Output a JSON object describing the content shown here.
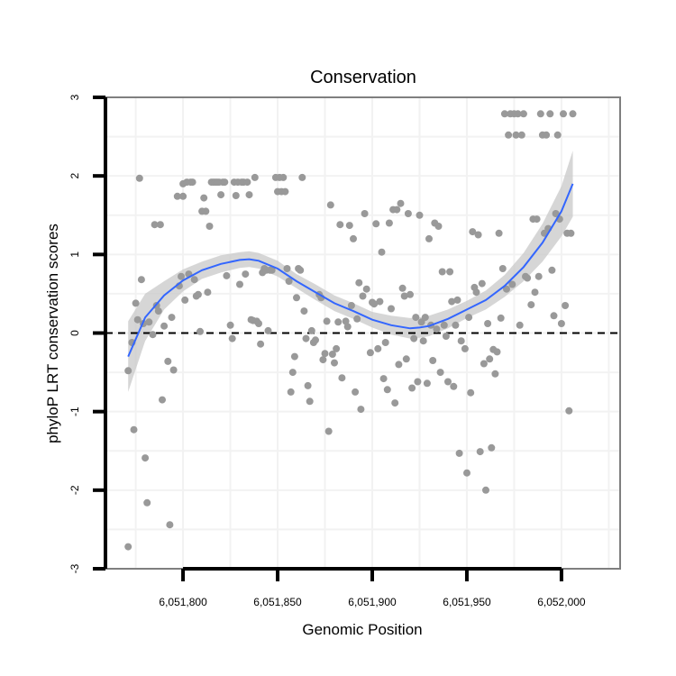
{
  "chart_data": {
    "type": "scatter",
    "title": "Conservation",
    "xlabel": "Genomic Position",
    "ylabel": "phyloP LRT conservation scores",
    "xlim": [
      6051759,
      6052031
    ],
    "ylim": [
      -3,
      3
    ],
    "x_ticks": [
      6051800,
      6051850,
      6051900,
      6051950,
      6052000
    ],
    "x_tick_labels": [
      "6,051,800",
      "6,051,850",
      "6,051,900",
      "6,051,950",
      "6,052,000"
    ],
    "y_ticks": [
      -3,
      -2,
      -1,
      0,
      1,
      2,
      3
    ],
    "y_tick_labels": [
      "-3",
      "-2",
      "-1",
      "0",
      "1",
      "2",
      "3"
    ],
    "reference_line": {
      "y": 0,
      "style": "dashed",
      "color": "#000000"
    },
    "colors": {
      "points": "#999999",
      "smooth": "#3366ff",
      "band": "#c8c8c8",
      "panel_border": "#7f7f7f",
      "grid": "#f2f2f2"
    },
    "points": [
      [
        6051771,
        -2.72
      ],
      [
        6051771,
        -0.48
      ],
      [
        6051773,
        -0.12
      ],
      [
        6051774,
        -1.23
      ],
      [
        6051775,
        0.38
      ],
      [
        6051776,
        0.17
      ],
      [
        6051777,
        1.97
      ],
      [
        6051778,
        0.68
      ],
      [
        6051779,
        0.12
      ],
      [
        6051780,
        -1.59
      ],
      [
        6051781,
        -2.16
      ],
      [
        6051782,
        0.14
      ],
      [
        6051784,
        -0.02
      ],
      [
        6051785,
        1.38
      ],
      [
        6051786,
        0.35
      ],
      [
        6051787,
        0.28
      ],
      [
        6051788,
        1.38
      ],
      [
        6051789,
        -0.85
      ],
      [
        6051790,
        0.09
      ],
      [
        6051792,
        -0.36
      ],
      [
        6051793,
        -2.44
      ],
      [
        6051794,
        0.2
      ],
      [
        6051795,
        -0.47
      ],
      [
        6051797,
        1.74
      ],
      [
        6051798,
        0.6
      ],
      [
        6051799,
        0.72
      ],
      [
        6051800,
        1.74
      ],
      [
        6051800,
        1.9
      ],
      [
        6051801,
        0.42
      ],
      [
        6051802,
        1.92
      ],
      [
        6051803,
        0.75
      ],
      [
        6051804,
        1.92
      ],
      [
        6051805,
        1.92
      ],
      [
        6051806,
        0.68
      ],
      [
        6051807,
        0.47
      ],
      [
        6051808,
        0.49
      ],
      [
        6051809,
        0.02
      ],
      [
        6051810,
        1.55
      ],
      [
        6051811,
        1.72
      ],
      [
        6051812,
        1.55
      ],
      [
        6051813,
        0.52
      ],
      [
        6051814,
        1.36
      ],
      [
        6051815,
        1.92
      ],
      [
        6051816,
        1.92
      ],
      [
        6051817,
        1.92
      ],
      [
        6051818,
        1.92
      ],
      [
        6051819,
        1.92
      ],
      [
        6051820,
        1.76
      ],
      [
        6051821,
        1.92
      ],
      [
        6051822,
        1.92
      ],
      [
        6051823,
        0.73
      ],
      [
        6051825,
        0.1
      ],
      [
        6051826,
        -0.07
      ],
      [
        6051827,
        1.92
      ],
      [
        6051828,
        1.75
      ],
      [
        6051829,
        1.92
      ],
      [
        6051830,
        0.62
      ],
      [
        6051831,
        1.92
      ],
      [
        6051832,
        1.92
      ],
      [
        6051833,
        0.75
      ],
      [
        6051834,
        1.92
      ],
      [
        6051835,
        1.76
      ],
      [
        6051836,
        0.17
      ],
      [
        6051837,
        0.16
      ],
      [
        6051838,
        1.98
      ],
      [
        6051839,
        0.15
      ],
      [
        6051840,
        0.12
      ],
      [
        6051841,
        -0.14
      ],
      [
        6051842,
        0.77
      ],
      [
        6051843,
        0.82
      ],
      [
        6051844,
        0.8
      ],
      [
        6051845,
        0.03
      ],
      [
        6051846,
        0.8
      ],
      [
        6051847,
        0.8
      ],
      [
        6051849,
        1.98
      ],
      [
        6051850,
        1.8
      ],
      [
        6051851,
        1.98
      ],
      [
        6051852,
        1.8
      ],
      [
        6051853,
        1.98
      ],
      [
        6051854,
        1.8
      ],
      [
        6051855,
        0.82
      ],
      [
        6051856,
        0.66
      ],
      [
        6051857,
        -0.75
      ],
      [
        6051858,
        -0.5
      ],
      [
        6051859,
        -0.3
      ],
      [
        6051860,
        0.45
      ],
      [
        6051861,
        0.82
      ],
      [
        6051862,
        0.8
      ],
      [
        6051863,
        1.98
      ],
      [
        6051864,
        0.28
      ],
      [
        6051865,
        -0.07
      ],
      [
        6051866,
        -0.67
      ],
      [
        6051867,
        -0.87
      ],
      [
        6051868,
        0.03
      ],
      [
        6051869,
        -0.12
      ],
      [
        6051870,
        -0.09
      ],
      [
        6051872,
        0.49
      ],
      [
        6051873,
        0.45
      ],
      [
        6051874,
        -0.34
      ],
      [
        6051875,
        -0.26
      ],
      [
        6051876,
        0.15
      ],
      [
        6051877,
        -1.25
      ],
      [
        6051878,
        1.63
      ],
      [
        6051879,
        -0.27
      ],
      [
        6051880,
        -0.38
      ],
      [
        6051881,
        -0.2
      ],
      [
        6051882,
        0.14
      ],
      [
        6051883,
        1.38
      ],
      [
        6051884,
        -0.57
      ],
      [
        6051886,
        0.15
      ],
      [
        6051887,
        0.08
      ],
      [
        6051888,
        1.37
      ],
      [
        6051889,
        0.35
      ],
      [
        6051890,
        1.2
      ],
      [
        6051891,
        -0.75
      ],
      [
        6051892,
        0.18
      ],
      [
        6051893,
        0.64
      ],
      [
        6051894,
        -0.97
      ],
      [
        6051895,
        0.47
      ],
      [
        6051896,
        1.52
      ],
      [
        6051897,
        0.56
      ],
      [
        6051899,
        -0.25
      ],
      [
        6051900,
        0.39
      ],
      [
        6051901,
        0.37
      ],
      [
        6051902,
        1.39
      ],
      [
        6051903,
        -0.2
      ],
      [
        6051904,
        0.4
      ],
      [
        6051905,
        1.03
      ],
      [
        6051906,
        -0.58
      ],
      [
        6051907,
        -0.12
      ],
      [
        6051908,
        -0.72
      ],
      [
        6051909,
        1.4
      ],
      [
        6051910,
        0.31
      ],
      [
        6051911,
        1.57
      ],
      [
        6051912,
        -0.89
      ],
      [
        6051913,
        1.57
      ],
      [
        6051914,
        -0.4
      ],
      [
        6051915,
        1.65
      ],
      [
        6051916,
        0.57
      ],
      [
        6051917,
        0.47
      ],
      [
        6051918,
        -0.33
      ],
      [
        6051919,
        1.52
      ],
      [
        6051920,
        0.49
      ],
      [
        6051921,
        -0.7
      ],
      [
        6051922,
        -0.07
      ],
      [
        6051923,
        0.2
      ],
      [
        6051924,
        -0.62
      ],
      [
        6051925,
        1.5
      ],
      [
        6051926,
        0.14
      ],
      [
        6051927,
        -0.1
      ],
      [
        6051928,
        0.2
      ],
      [
        6051929,
        -0.64
      ],
      [
        6051930,
        1.2
      ],
      [
        6051931,
        0.1
      ],
      [
        6051932,
        -0.35
      ],
      [
        6051933,
        1.4
      ],
      [
        6051934,
        0.05
      ],
      [
        6051935,
        1.36
      ],
      [
        6051936,
        -0.5
      ],
      [
        6051937,
        0.78
      ],
      [
        6051938,
        0.1
      ],
      [
        6051939,
        -0.04
      ],
      [
        6051940,
        -0.62
      ],
      [
        6051941,
        0.78
      ],
      [
        6051942,
        0.4
      ],
      [
        6051943,
        -0.68
      ],
      [
        6051944,
        0.1
      ],
      [
        6051945,
        0.42
      ],
      [
        6051946,
        -1.53
      ],
      [
        6051947,
        -0.1
      ],
      [
        6051949,
        -0.2
      ],
      [
        6051950,
        -1.78
      ],
      [
        6051951,
        0.2
      ],
      [
        6051952,
        -0.76
      ],
      [
        6051953,
        1.29
      ],
      [
        6051954,
        0.58
      ],
      [
        6051955,
        0.52
      ],
      [
        6051956,
        1.25
      ],
      [
        6051957,
        -1.51
      ],
      [
        6051958,
        0.63
      ],
      [
        6051959,
        -0.39
      ],
      [
        6051960,
        -2.0
      ],
      [
        6051961,
        0.12
      ],
      [
        6051962,
        -0.33
      ],
      [
        6051963,
        -1.46
      ],
      [
        6051964,
        -0.21
      ],
      [
        6051965,
        -0.52
      ],
      [
        6051966,
        -0.24
      ],
      [
        6051967,
        1.27
      ],
      [
        6051968,
        0.19
      ],
      [
        6051969,
        0.82
      ],
      [
        6051970,
        2.79
      ],
      [
        6051971,
        0.56
      ],
      [
        6051972,
        2.52
      ],
      [
        6051973,
        2.79
      ],
      [
        6051974,
        0.62
      ],
      [
        6051975,
        2.79
      ],
      [
        6051976,
        2.52
      ],
      [
        6051977,
        2.79
      ],
      [
        6051978,
        0.1
      ],
      [
        6051979,
        2.52
      ],
      [
        6051980,
        2.79
      ],
      [
        6051981,
        0.72
      ],
      [
        6051982,
        0.7
      ],
      [
        6051984,
        0.36
      ],
      [
        6051985,
        1.45
      ],
      [
        6051986,
        0.52
      ],
      [
        6051987,
        1.45
      ],
      [
        6051988,
        0.72
      ],
      [
        6051989,
        2.79
      ],
      [
        6051990,
        2.52
      ],
      [
        6051991,
        1.27
      ],
      [
        6051992,
        2.52
      ],
      [
        6051993,
        1.33
      ],
      [
        6051994,
        2.79
      ],
      [
        6051995,
        0.8
      ],
      [
        6051996,
        0.22
      ],
      [
        6051997,
        1.52
      ],
      [
        6051998,
        2.52
      ],
      [
        6051999,
        1.45
      ],
      [
        6052000,
        0.12
      ],
      [
        6052001,
        2.79
      ],
      [
        6052002,
        0.35
      ],
      [
        6052003,
        1.27
      ],
      [
        6052004,
        -0.99
      ],
      [
        6052005,
        1.27
      ],
      [
        6052006,
        2.79
      ]
    ],
    "smooth": {
      "x": [
        6051771,
        6051780,
        6051790,
        6051800,
        6051810,
        6051820,
        6051830,
        6051835,
        6051840,
        6051850,
        6051860,
        6051870,
        6051880,
        6051890,
        6051900,
        6051910,
        6051920,
        6051925,
        6051930,
        6051940,
        6051950,
        6051960,
        6051970,
        6051980,
        6051990,
        6052000,
        6052006
      ],
      "y": [
        -0.3,
        0.2,
        0.48,
        0.67,
        0.8,
        0.88,
        0.93,
        0.94,
        0.92,
        0.82,
        0.66,
        0.52,
        0.38,
        0.28,
        0.17,
        0.1,
        0.06,
        0.07,
        0.09,
        0.18,
        0.3,
        0.42,
        0.6,
        0.84,
        1.15,
        1.55,
        1.9
      ],
      "lower": [
        -0.75,
        -0.1,
        0.3,
        0.53,
        0.69,
        0.77,
        0.83,
        0.84,
        0.82,
        0.72,
        0.57,
        0.42,
        0.28,
        0.18,
        0.07,
        -0.02,
        -0.07,
        -0.06,
        -0.04,
        0.06,
        0.19,
        0.3,
        0.46,
        0.66,
        0.91,
        1.23,
        1.48
      ],
      "upper": [
        0.15,
        0.5,
        0.66,
        0.81,
        0.91,
        0.99,
        1.03,
        1.04,
        1.02,
        0.92,
        0.75,
        0.62,
        0.48,
        0.38,
        0.27,
        0.22,
        0.19,
        0.2,
        0.22,
        0.3,
        0.41,
        0.54,
        0.74,
        1.02,
        1.39,
        1.87,
        2.32
      ]
    }
  }
}
